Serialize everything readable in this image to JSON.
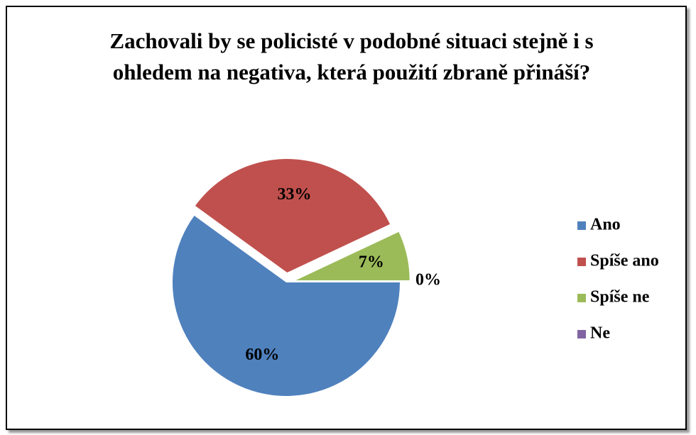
{
  "chart_data": {
    "type": "pie",
    "title": "Zachovali by se policisté v podobné situaci stejně i s ohledem na negativa, která použití zbraně přináší?",
    "categories": [
      "Ano",
      "Spíše ano",
      "Spíše ne",
      "Ne"
    ],
    "values": [
      60,
      33,
      7,
      0
    ],
    "value_labels": [
      "60%",
      "33%",
      "7%",
      "0%"
    ],
    "colors": [
      "#4f81bd",
      "#c0504d",
      "#9bbb59",
      "#8064a2"
    ],
    "legend": "right"
  }
}
